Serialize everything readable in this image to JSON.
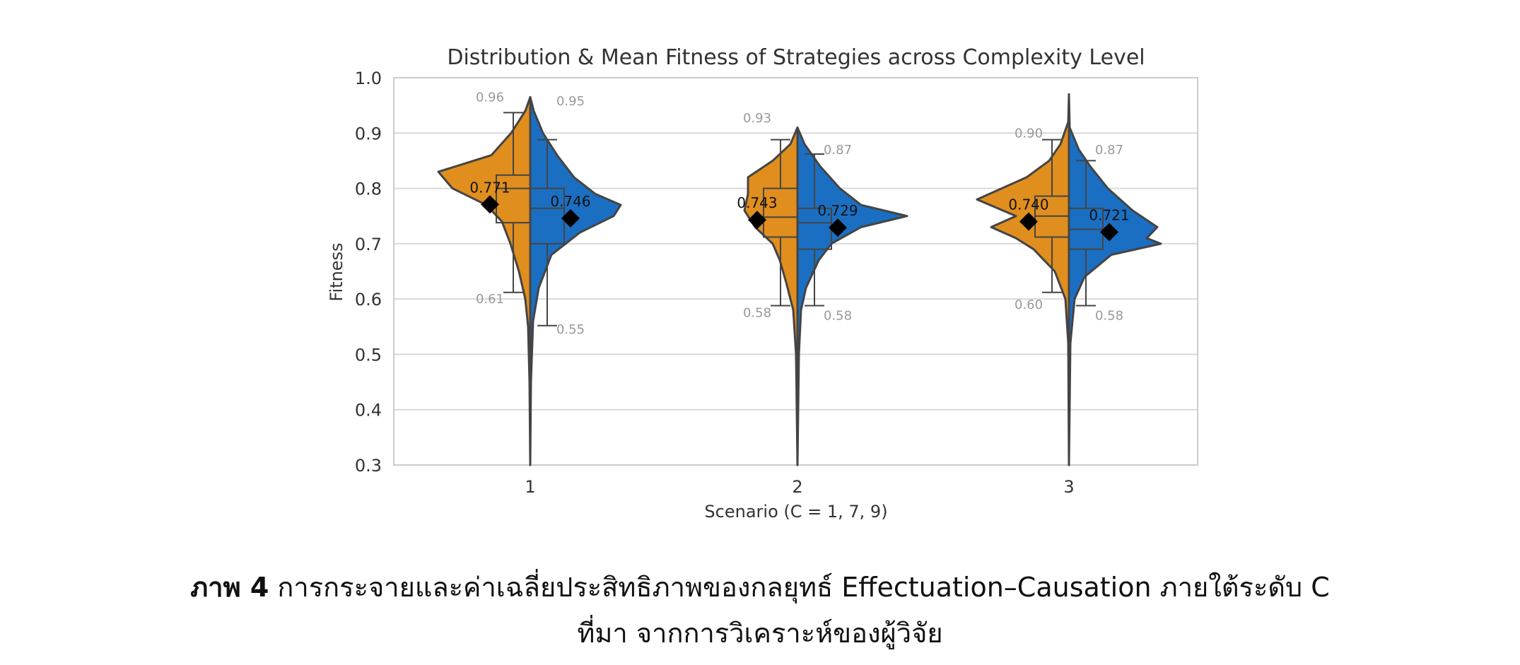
{
  "chart_data": {
    "type": "violin",
    "title": "Distribution & Mean Fitness of Strategies across Complexity Level",
    "xlabel": "Scenario (C = 1, 7, 9)",
    "ylabel": "Fitness",
    "ylim": [
      0.3,
      1.0
    ],
    "yticks": [
      "0.3",
      "0.4",
      "0.5",
      "0.6",
      "0.7",
      "0.8",
      "0.9",
      "1.0"
    ],
    "categories": [
      "1",
      "2",
      "3"
    ],
    "grid": "horizontal",
    "series": [
      {
        "color": "#E08E1E",
        "side": "left",
        "mean": [
          0.771,
          0.743,
          0.74
        ],
        "mean_labels": [
          "0.771",
          "0.743",
          "0.740"
        ],
        "max": [
          0.96,
          0.93,
          0.9
        ],
        "max_labels": [
          "0.96",
          "0.93",
          "0.90"
        ],
        "min": [
          0.61,
          0.58,
          0.6
        ],
        "min_labels": [
          "0.61",
          "0.58",
          "0.60"
        ],
        "box": [
          {
            "q1": 0.738,
            "median": 0.8,
            "q3": 0.824,
            "whisker_low": 0.612,
            "whisker_high": 0.937
          },
          {
            "q1": 0.712,
            "median": 0.748,
            "q3": 0.8,
            "whisker_low": 0.588,
            "whisker_high": 0.888
          },
          {
            "q1": 0.712,
            "median": 0.75,
            "q3": 0.786,
            "whisker_low": 0.612,
            "whisker_high": 0.888
          }
        ]
      },
      {
        "color": "#1B6FC2",
        "side": "right",
        "mean": [
          0.746,
          0.729,
          0.721
        ],
        "mean_labels": [
          "0.746",
          "0.729",
          "0.721"
        ],
        "max": [
          0.95,
          0.87,
          0.87
        ],
        "max_labels": [
          "0.95",
          "0.87",
          "0.87"
        ],
        "min": [
          0.55,
          0.58,
          0.58
        ],
        "min_labels": [
          "0.55",
          "0.58",
          "0.58"
        ],
        "box": [
          {
            "q1": 0.7,
            "median": 0.764,
            "q3": 0.8,
            "whisker_low": 0.552,
            "whisker_high": 0.888
          },
          {
            "q1": 0.69,
            "median": 0.738,
            "q3": 0.764,
            "whisker_low": 0.588,
            "whisker_high": 0.862
          },
          {
            "q1": 0.69,
            "median": 0.726,
            "q3": 0.764,
            "whisker_low": 0.588,
            "whisker_high": 0.85
          }
        ]
      }
    ]
  },
  "caption": {
    "label": "ภาพ 4",
    "text": " การกระจายและค่าเฉลี่ยประสิทธิภาพของกลยุทธ์ Effectuation–Causation ภายใต้ระดับ C",
    "line2": "ที่มา จากการวิเคราะห์ของผู้วิจัย"
  }
}
